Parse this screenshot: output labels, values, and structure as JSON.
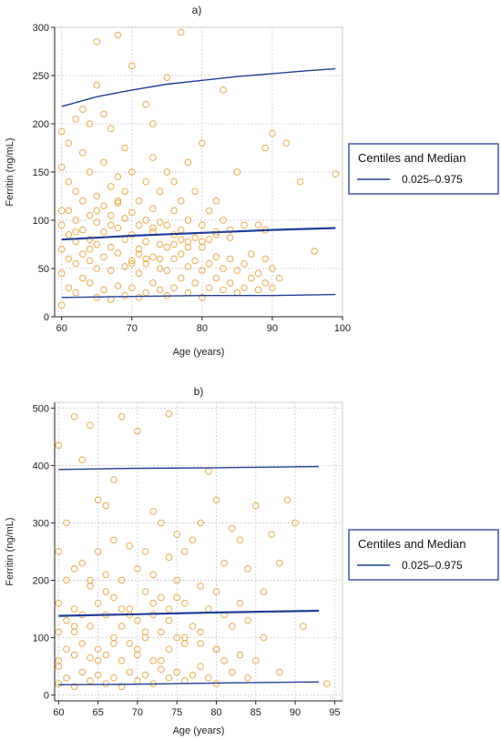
{
  "chart_data": [
    {
      "type": "scatter",
      "panel_label": "a)",
      "xlabel": "Age (years)",
      "ylabel": "Ferritin (ng/mL)",
      "xlim": [
        59,
        100
      ],
      "ylim": [
        0,
        300
      ],
      "xticks": [
        60,
        70,
        80,
        90,
        100
      ],
      "yticks": [
        0,
        50,
        100,
        150,
        200,
        250,
        300
      ],
      "grid": true,
      "point_color": "#e8a33a",
      "line_color": "#1f3f99",
      "legend": {
        "title": "Centiles and Median",
        "entry": "0.025–0.975",
        "placement": "right"
      },
      "lines": [
        {
          "x": [
            60,
            65,
            70,
            75,
            80,
            85,
            90,
            95,
            99
          ],
          "y": [
            218,
            228,
            235,
            241,
            245,
            249,
            252,
            255,
            257
          ]
        },
        {
          "x": [
            60,
            70,
            80,
            90,
            99
          ],
          "y": [
            80,
            84,
            87,
            90,
            92
          ]
        },
        {
          "x": [
            60,
            70,
            80,
            90,
            99
          ],
          "y": [
            20,
            21,
            22,
            22,
            23
          ]
        }
      ],
      "points": {
        "x": [
          60,
          60,
          60,
          60,
          60,
          60,
          61,
          61,
          61,
          61,
          61,
          61,
          62,
          62,
          62,
          62,
          62,
          62,
          63,
          63,
          63,
          63,
          63,
          63,
          64,
          64,
          64,
          64,
          64,
          64,
          65,
          65,
          65,
          65,
          65,
          65,
          65,
          66,
          66,
          66,
          66,
          66,
          66,
          67,
          67,
          67,
          67,
          67,
          67,
          68,
          68,
          68,
          68,
          68,
          68,
          69,
          69,
          69,
          69,
          69,
          69,
          70,
          70,
          70,
          70,
          70,
          70,
          71,
          71,
          71,
          71,
          71,
          72,
          72,
          72,
          72,
          72,
          72,
          73,
          73,
          73,
          73,
          73,
          73,
          74,
          74,
          74,
          74,
          74,
          75,
          75,
          75,
          75,
          75,
          75,
          76,
          76,
          76,
          76,
          76,
          77,
          77,
          77,
          77,
          77,
          78,
          78,
          78,
          78,
          78,
          79,
          79,
          79,
          79,
          80,
          80,
          80,
          80,
          80,
          81,
          81,
          81,
          81,
          82,
          82,
          82,
          82,
          83,
          83,
          83,
          84,
          84,
          84,
          85,
          85,
          85,
          86,
          86,
          86,
          87,
          87,
          88,
          88,
          89,
          89,
          89,
          90,
          90,
          90,
          91,
          92,
          94,
          96,
          99,
          65,
          68,
          71,
          77,
          83,
          89,
          64,
          70,
          76,
          82,
          88,
          62,
          74,
          80,
          67,
          73,
          60,
          72,
          84,
          78
        ],
        "y": [
          12,
          45,
          70,
          95,
          155,
          192,
          30,
          60,
          85,
          110,
          140,
          180,
          25,
          55,
          78,
          100,
          130,
          205,
          40,
          65,
          90,
          120,
          170,
          215,
          35,
          58,
          80,
          105,
          150,
          200,
          20,
          50,
          75,
          98,
          125,
          240,
          285,
          28,
          62,
          88,
          115,
          160,
          210,
          18,
          48,
          72,
          95,
          135,
          195,
          32,
          66,
          92,
          118,
          145,
          292,
          22,
          52,
          80,
          102,
          130,
          175,
          30,
          58,
          85,
          108,
          150,
          260,
          20,
          45,
          70,
          95,
          120,
          25,
          55,
          78,
          100,
          140,
          220,
          35,
          62,
          88,
          112,
          165,
          200,
          28,
          50,
          75,
          98,
          130,
          22,
          48,
          72,
          95,
          150,
          248,
          30,
          60,
          85,
          110,
          140,
          40,
          65,
          90,
          120,
          295,
          25,
          52,
          78,
          100,
          160,
          35,
          58,
          82,
          130,
          20,
          48,
          72,
          95,
          180,
          30,
          55,
          80,
          110,
          40,
          62,
          88,
          120,
          28,
          50,
          235,
          35,
          60,
          90,
          25,
          48,
          150,
          30,
          55,
          95,
          40,
          65,
          28,
          45,
          35,
          60,
          175,
          30,
          50,
          190,
          40,
          180,
          140,
          68,
          148,
          110,
          120,
          65,
          80,
          100,
          90,
          70,
          55,
          75,
          85,
          95,
          88,
          60,
          78,
          105,
          92,
          110,
          60,
          82,
          72
        ]
      }
    },
    {
      "type": "scatter",
      "panel_label": "b)",
      "xlabel": "Age (years)",
      "ylabel": "Ferritin (ng/mL)",
      "xlim": [
        59.5,
        96
      ],
      "ylim": [
        -10,
        510
      ],
      "xticks": [
        60,
        65,
        70,
        75,
        80,
        85,
        90,
        95
      ],
      "yticks": [
        0,
        100,
        200,
        300,
        400,
        500
      ],
      "grid": true,
      "point_color": "#e8a33a",
      "line_color": "#1f3f99",
      "legend": {
        "title": "Centiles and Median",
        "entry": "0.025–0.975",
        "placement": "right"
      },
      "lines": [
        {
          "x": [
            60,
            70,
            80,
            93
          ],
          "y": [
            393,
            395,
            396,
            398
          ]
        },
        {
          "x": [
            60,
            70,
            80,
            93
          ],
          "y": [
            138,
            141,
            144,
            147
          ]
        },
        {
          "x": [
            60,
            70,
            80,
            93
          ],
          "y": [
            18,
            19,
            21,
            23
          ]
        }
      ],
      "points": {
        "x": [
          60,
          60,
          60,
          60,
          60,
          60,
          61,
          61,
          61,
          61,
          61,
          62,
          62,
          62,
          62,
          62,
          63,
          63,
          63,
          63,
          63,
          64,
          64,
          64,
          64,
          64,
          65,
          65,
          65,
          65,
          65,
          66,
          66,
          66,
          66,
          66,
          67,
          67,
          67,
          67,
          67,
          68,
          68,
          68,
          68,
          68,
          69,
          69,
          69,
          69,
          70,
          70,
          70,
          70,
          70,
          71,
          71,
          71,
          71,
          72,
          72,
          72,
          72,
          72,
          73,
          73,
          73,
          73,
          74,
          74,
          74,
          74,
          74,
          75,
          75,
          75,
          75,
          76,
          76,
          76,
          76,
          77,
          77,
          77,
          78,
          78,
          78,
          78,
          79,
          79,
          79,
          80,
          80,
          80,
          80,
          81,
          81,
          81,
          82,
          82,
          82,
          83,
          83,
          83,
          84,
          84,
          85,
          85,
          86,
          86,
          87,
          88,
          88,
          89,
          90,
          91,
          94,
          62,
          64,
          67,
          70,
          74,
          60,
          68,
          73,
          76,
          62,
          66,
          72,
          78,
          84,
          65,
          71,
          69,
          75,
          80
        ],
        "y": [
          20,
          60,
          110,
          160,
          250,
          435,
          30,
          80,
          130,
          200,
          300,
          15,
          70,
          150,
          220,
          485,
          40,
          90,
          140,
          230,
          410,
          25,
          65,
          120,
          190,
          470,
          35,
          80,
          160,
          250,
          340,
          20,
          70,
          140,
          210,
          330,
          30,
          100,
          170,
          270,
          375,
          15,
          60,
          120,
          200,
          485,
          40,
          90,
          150,
          260,
          25,
          80,
          130,
          220,
          460,
          35,
          100,
          180,
          250,
          20,
          60,
          140,
          210,
          320,
          45,
          110,
          170,
          300,
          30,
          80,
          150,
          240,
          490,
          40,
          100,
          200,
          280,
          25,
          90,
          160,
          250,
          35,
          120,
          270,
          50,
          110,
          190,
          300,
          30,
          150,
          390,
          20,
          80,
          180,
          340,
          60,
          140,
          230,
          40,
          120,
          290,
          70,
          160,
          270,
          30,
          220,
          60,
          330,
          100,
          180,
          280,
          40,
          230,
          340,
          300,
          120,
          20,
          110,
          200,
          90,
          70,
          130,
          50,
          150,
          60,
          100,
          120,
          180,
          160,
          90,
          130,
          60,
          110,
          140,
          170,
          80
        ]
      }
    }
  ]
}
